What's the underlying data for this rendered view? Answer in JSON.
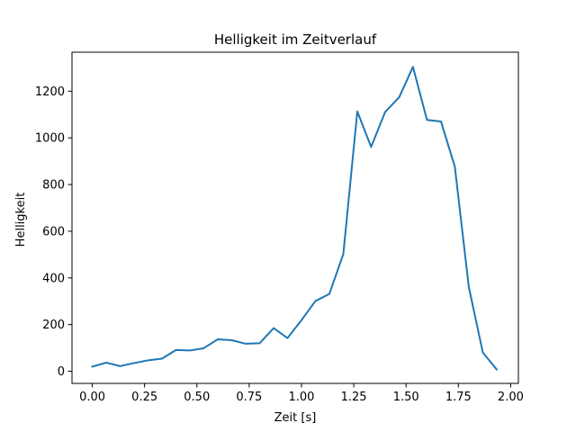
{
  "chart_data": {
    "type": "line",
    "title": "Helligkeit im Zeitverlauf",
    "xlabel": "Zeit [s]",
    "ylabel": "Helligkeit",
    "xlim": [
      -0.097,
      2.037
    ],
    "ylim": [
      -52,
      1367
    ],
    "xticks": [
      0.0,
      0.25,
      0.5,
      0.75,
      1.0,
      1.25,
      1.5,
      1.75,
      2.0
    ],
    "xtick_labels": [
      "0.00",
      "0.25",
      "0.50",
      "0.75",
      "1.00",
      "1.25",
      "1.50",
      "1.75",
      "2.00"
    ],
    "yticks": [
      0,
      200,
      400,
      600,
      800,
      1000,
      1200
    ],
    "ytick_labels": [
      "0",
      "200",
      "400",
      "600",
      "800",
      "1000",
      "1200"
    ],
    "grid": false,
    "color": "#1f77b4",
    "series": [
      {
        "x": [
          0.0,
          0.067,
          0.133,
          0.2,
          0.267,
          0.333,
          0.4,
          0.467,
          0.533,
          0.6,
          0.667,
          0.733,
          0.8,
          0.867,
          0.933,
          1.0,
          1.067,
          1.133,
          1.2,
          1.267,
          1.333,
          1.4,
          1.467,
          1.533,
          1.6,
          1.667,
          1.733,
          1.8,
          1.867,
          1.933
        ],
        "y": [
          20,
          37,
          22,
          35,
          47,
          54,
          91,
          89,
          99,
          137,
          133,
          118,
          120,
          185,
          142,
          219,
          301,
          331,
          502,
          1113,
          961,
          1111,
          1174,
          1304,
          1077,
          1070,
          877,
          361,
          80,
          8
        ]
      }
    ]
  }
}
